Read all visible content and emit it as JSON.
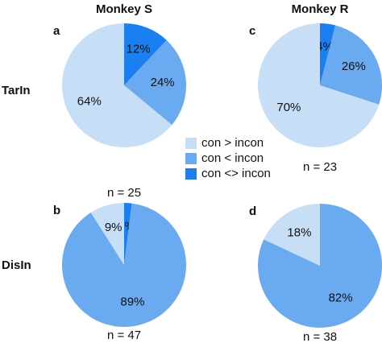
{
  "columns": [
    "Monkey S",
    "Monkey R"
  ],
  "rows": [
    "TarIn",
    "DisIn"
  ],
  "legend": {
    "labels": [
      "con > incon",
      "con < incon",
      "con <> incon"
    ],
    "colors": [
      "#c6dff7",
      "#6aaaf0",
      "#1a7ff0"
    ]
  },
  "chart_data": [
    {
      "type": "pie",
      "panel": "a",
      "note": "n = 25",
      "values": [
        64,
        24,
        12
      ],
      "value_labels": [
        "64%",
        "24%",
        "12%"
      ]
    },
    {
      "type": "pie",
      "panel": "b",
      "note": "n = 47",
      "values": [
        9,
        89,
        2
      ],
      "value_labels": [
        "9%",
        "89%",
        "2%"
      ]
    },
    {
      "type": "pie",
      "panel": "c",
      "note": "n = 23",
      "values": [
        70,
        26,
        4
      ],
      "value_labels": [
        "70%",
        "26%",
        "4%"
      ]
    },
    {
      "type": "pie",
      "panel": "d",
      "note": "n = 38",
      "values": [
        18,
        82
      ],
      "value_labels": [
        "18%",
        "82%"
      ]
    }
  ]
}
